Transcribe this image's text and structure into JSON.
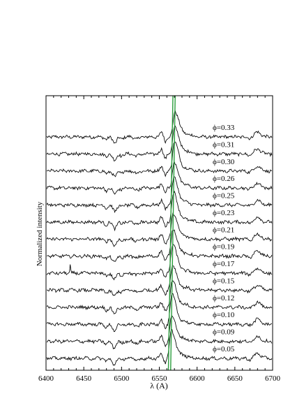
{
  "chart_data": {
    "type": "line",
    "xlabel": "λ (A)",
    "ylabel": "Normalized intensity",
    "xlim": [
      6400,
      6700
    ],
    "x_ticks": [
      "6400",
      "6450",
      "6500",
      "6550",
      "6600",
      "6650",
      "6700"
    ],
    "grid": false,
    "reference_lines": [
      {
        "x_bottom": 6562,
        "x_top": 6568,
        "color": "#2a9d3c"
      },
      {
        "x_bottom": 6565,
        "x_top": 6571,
        "color": "#2a9d3c"
      }
    ],
    "series": [
      {
        "name": "ϕ=0.33"
      },
      {
        "name": "ϕ=0.31"
      },
      {
        "name": "ϕ=0.30"
      },
      {
        "name": "ϕ=0.26"
      },
      {
        "name": "ϕ=0.25"
      },
      {
        "name": "ϕ=0.23"
      },
      {
        "name": "ϕ=0.21"
      },
      {
        "name": "ϕ=0.19"
      },
      {
        "name": "ϕ=0.17"
      },
      {
        "name": "ϕ=0.15"
      },
      {
        "name": "ϕ=0.12"
      },
      {
        "name": "ϕ=0.10"
      },
      {
        "name": "ϕ=0.09"
      },
      {
        "name": "ϕ=0.05"
      }
    ]
  }
}
